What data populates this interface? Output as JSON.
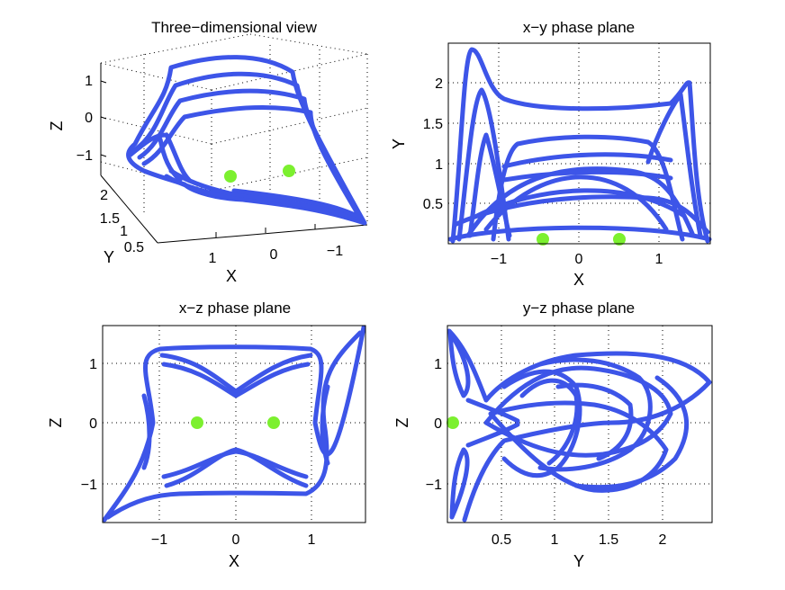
{
  "colors": {
    "trajectory": "#3d55e8",
    "equilibrium": "#7cf02f",
    "axes": "#000000",
    "background": "#ffffff"
  },
  "chart_data": [
    {
      "type": "line",
      "title": "Three−dimensional view",
      "xlabel": "X",
      "ylabel": "Y",
      "zlabel": "Z",
      "x_ticks": [
        "1",
        "0",
        "−1"
      ],
      "y_ticks": [
        "2",
        "1.5",
        "1",
        "0.5"
      ],
      "z_ticks": [
        "1",
        "0",
        "−1"
      ],
      "grid": true,
      "series": [
        {
          "marker": "dot",
          "points": [
            [
              0.5,
              0.05,
              0.0
            ],
            [
              -0.5,
              0.05,
              0.0
            ]
          ]
        }
      ]
    },
    {
      "type": "line",
      "title": "x−y phase plane",
      "xlabel": "X",
      "ylabel": "Y",
      "xlim": [
        -1.65,
        1.65
      ],
      "ylim": [
        0,
        2.4
      ],
      "x_ticks": [
        "−1",
        "0",
        "1"
      ],
      "y_ticks": [
        "0.5",
        "1",
        "1.5",
        "2"
      ],
      "grid": true,
      "series": [
        {
          "marker": "dot",
          "x": [
            -0.5,
            0.5
          ],
          "y": [
            0.05,
            0.05
          ]
        }
      ]
    },
    {
      "type": "line",
      "title": "x−z phase plane",
      "xlabel": "X",
      "ylabel": "Z",
      "xlim": [
        -1.7,
        1.7
      ],
      "ylim": [
        -1.65,
        1.6
      ],
      "x_ticks": [
        "−1",
        "0",
        "1"
      ],
      "y_ticks": [
        "−1",
        "0",
        "1"
      ],
      "grid": true,
      "series": [
        {
          "marker": "dot",
          "x": [
            -0.5,
            0.5
          ],
          "y": [
            0,
            0
          ]
        }
      ]
    },
    {
      "type": "line",
      "title": "y−z phase plane",
      "xlabel": "Y",
      "ylabel": "Z",
      "xlim": [
        0,
        2.45
      ],
      "ylim": [
        -1.65,
        1.6
      ],
      "x_ticks": [
        "0.5",
        "1",
        "1.5",
        "2"
      ],
      "y_ticks": [
        "−1",
        "0",
        "1"
      ],
      "grid": true,
      "series": [
        {
          "marker": "dot",
          "x": [
            0.05
          ],
          "y": [
            0
          ]
        }
      ]
    }
  ]
}
